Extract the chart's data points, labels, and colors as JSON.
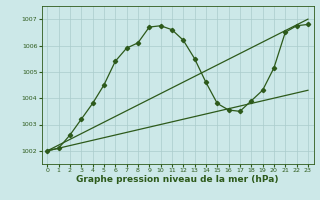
{
  "background_color": "#cce8e8",
  "grid_color": "#aacccc",
  "line_color": "#2d5a1b",
  "xlabel": "Graphe pression niveau de la mer (hPa)",
  "xlabel_fontsize": 6.5,
  "ylim": [
    1001.5,
    1007.5
  ],
  "xlim": [
    -0.5,
    23.5
  ],
  "yticks": [
    1002,
    1003,
    1004,
    1005,
    1006,
    1007
  ],
  "xticks": [
    0,
    1,
    2,
    3,
    4,
    5,
    6,
    7,
    8,
    9,
    10,
    11,
    12,
    13,
    14,
    15,
    16,
    17,
    18,
    19,
    20,
    21,
    22,
    23
  ],
  "tick_fontsize": 4.5,
  "line1_x": [
    0,
    1,
    2,
    3,
    4,
    5,
    6,
    7,
    8,
    9,
    10,
    11,
    12,
    13,
    14,
    15,
    16,
    17,
    18,
    19,
    20,
    21,
    22,
    23
  ],
  "line1_y": [
    1002.0,
    1002.1,
    1002.6,
    1003.2,
    1003.8,
    1004.5,
    1005.4,
    1005.9,
    1006.1,
    1006.7,
    1006.75,
    1006.6,
    1006.2,
    1005.5,
    1004.6,
    1003.8,
    1003.55,
    1003.5,
    1003.9,
    1004.3,
    1005.15,
    1006.5,
    1006.75,
    1006.8
  ],
  "line2_x": [
    0,
    23
  ],
  "line2_y": [
    1002.0,
    1007.0
  ],
  "line3_x": [
    0,
    23
  ],
  "line3_y": [
    1002.0,
    1004.3
  ],
  "marker": "D",
  "marker_size": 2.2,
  "line_width": 0.9
}
